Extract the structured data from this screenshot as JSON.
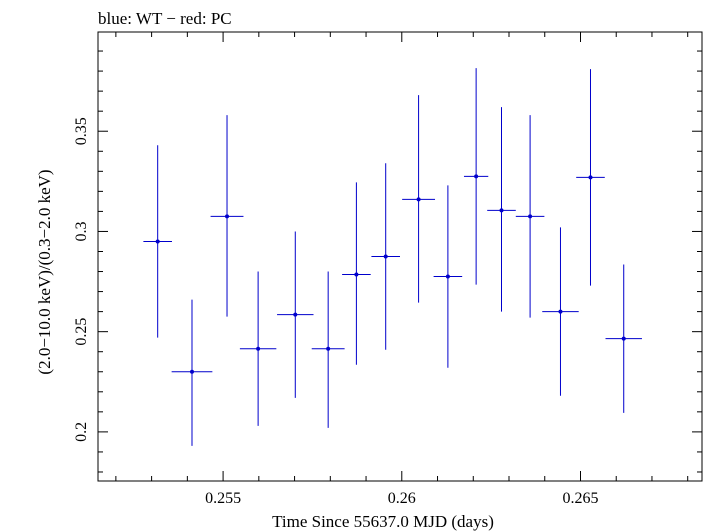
{
  "chart_data": {
    "type": "scatter",
    "title": "blue: WT − red: PC",
    "xlabel": "Time Since 55637.0 MJD (days)",
    "ylabel": "(2.0−10.0 keV)/(0.3−2.0 keV)",
    "xlim": [
      0.2515,
      0.2684
    ],
    "ylim": [
      0.1755,
      0.3995
    ],
    "xticks": [
      {
        "value": 0.255,
        "label": "0.255"
      },
      {
        "value": 0.26,
        "label": "0.26"
      },
      {
        "value": 0.265,
        "label": "0.265"
      }
    ],
    "yticks": [
      {
        "value": 0.2,
        "label": "0.2"
      },
      {
        "value": 0.25,
        "label": "0.25"
      },
      {
        "value": 0.3,
        "label": "0.3"
      },
      {
        "value": 0.35,
        "label": "0.35"
      }
    ],
    "grid": false,
    "series": [
      {
        "color": "#0000cc",
        "points": [
          {
            "x": 0.25317,
            "y": 0.295,
            "xerr": 0.0004,
            "ylo": 0.247,
            "yhi": 0.343
          },
          {
            "x": 0.25413,
            "y": 0.23,
            "xerr": 0.00057,
            "ylo": 0.193,
            "yhi": 0.266
          },
          {
            "x": 0.25511,
            "y": 0.3075,
            "xerr": 0.00046,
            "ylo": 0.2575,
            "yhi": 0.358
          },
          {
            "x": 0.25598,
            "y": 0.2415,
            "xerr": 0.00051,
            "ylo": 0.203,
            "yhi": 0.28
          },
          {
            "x": 0.25702,
            "y": 0.2585,
            "xerr": 0.00051,
            "ylo": 0.217,
            "yhi": 0.3
          },
          {
            "x": 0.25794,
            "y": 0.2415,
            "xerr": 0.00046,
            "ylo": 0.202,
            "yhi": 0.28
          },
          {
            "x": 0.25873,
            "y": 0.2785,
            "xerr": 0.0004,
            "ylo": 0.2335,
            "yhi": 0.3245
          },
          {
            "x": 0.25955,
            "y": 0.2875,
            "xerr": 0.0004,
            "ylo": 0.241,
            "yhi": 0.334
          },
          {
            "x": 0.26047,
            "y": 0.316,
            "xerr": 0.00046,
            "ylo": 0.2645,
            "yhi": 0.368
          },
          {
            "x": 0.26129,
            "y": 0.2775,
            "xerr": 0.0004,
            "ylo": 0.232,
            "yhi": 0.323
          },
          {
            "x": 0.26208,
            "y": 0.3275,
            "xerr": 0.00034,
            "ylo": 0.2735,
            "yhi": 0.3815
          },
          {
            "x": 0.26279,
            "y": 0.3105,
            "xerr": 0.0004,
            "ylo": 0.26,
            "yhi": 0.362
          },
          {
            "x": 0.26359,
            "y": 0.3075,
            "xerr": 0.0004,
            "ylo": 0.257,
            "yhi": 0.358
          },
          {
            "x": 0.26444,
            "y": 0.26,
            "xerr": 0.00051,
            "ylo": 0.218,
            "yhi": 0.302
          },
          {
            "x": 0.26528,
            "y": 0.327,
            "xerr": 0.0004,
            "ylo": 0.273,
            "yhi": 0.381
          },
          {
            "x": 0.26621,
            "y": 0.2465,
            "xerr": 0.00051,
            "ylo": 0.2095,
            "yhi": 0.2835
          }
        ]
      }
    ]
  }
}
